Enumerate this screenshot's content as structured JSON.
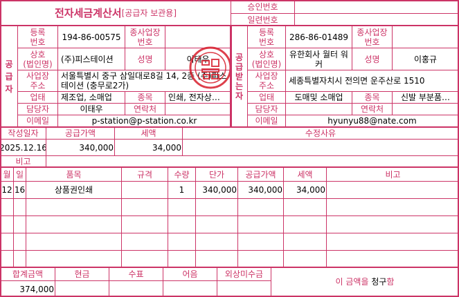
{
  "header": {
    "title": "전자세금계산서",
    "subtitle": "[공급자 보관용]",
    "approval_label": "승인번호",
    "approval_value": "",
    "serial_label": "일련번호",
    "serial_value": ""
  },
  "supplier": {
    "section_label": [
      "공",
      "급",
      "자"
    ],
    "reg_no_label": "등록\n번호",
    "reg_no": "194-86-00575",
    "sub_biz_label": "종사업장\n번호",
    "sub_biz": "",
    "company_label": "상호\n(법인명)",
    "company": "(주)피스테이션",
    "name_label": "성명",
    "name": "이태우",
    "address_label": "사업장\n주소",
    "address": "서울특별시 중구 삼일대로8길 14, 2층 (주)피스테이션 (충무로2가)",
    "biz_type_label": "업태",
    "biz_type": "제조업, 소매업",
    "item_label": "종목",
    "item": "인쇄, 전자상…",
    "manager_label": "담당자",
    "manager": "이태우",
    "contact_label": "연락처",
    "contact": "",
    "email_label": "이메일",
    "email": "p-station@p-station.co.kr",
    "stamp_color": "#d81e2c"
  },
  "buyer": {
    "section_label": [
      "공",
      "급",
      "받",
      "는",
      "자"
    ],
    "reg_no_label": "등록\n번호",
    "reg_no": "286-86-01489",
    "sub_biz_label": "종사업장\n번호",
    "sub_biz": "",
    "company_label": "상호\n(법인명)",
    "company": "유한회사 월터 워커",
    "name_label": "성명",
    "name": "이홍규",
    "address_label": "사업장\n주소",
    "address": "세종특별자치시 전의면 운주산로 1510",
    "biz_type_label": "업태",
    "biz_type": "도매및 소매업",
    "item_label": "종목",
    "item": "신발 부분품…",
    "manager_label": "담당자",
    "manager": "",
    "contact_label": "연락처",
    "contact": "",
    "email_label": "이메일",
    "email": "hyunyu88@nate.com"
  },
  "summary": {
    "date_label": "작성일자",
    "date": "2025.12.16",
    "supply_label": "공급가액",
    "supply": "340,000",
    "tax_label": "세액",
    "tax": "34,000",
    "reason_label": "수정사유",
    "reason": "",
    "note_label": "비고",
    "note": ""
  },
  "items": {
    "headers": [
      "월",
      "일",
      "품목",
      "규격",
      "수량",
      "단가",
      "공급가액",
      "세액",
      "비고"
    ],
    "rows": [
      [
        "12",
        "16",
        "상품권인쇄",
        "",
        "1",
        "340,000",
        "340,000",
        "34,000",
        ""
      ],
      [
        "",
        "",
        "",
        "",
        "",
        "",
        "",
        "",
        ""
      ],
      [
        "",
        "",
        "",
        "",
        "",
        "",
        "",
        "",
        ""
      ],
      [
        "",
        "",
        "",
        "",
        "",
        "",
        "",
        "",
        ""
      ],
      [
        "",
        "",
        "",
        "",
        "",
        "",
        "",
        "",
        ""
      ]
    ]
  },
  "footer": {
    "headers": [
      "합계금액",
      "현금",
      "수표",
      "어음",
      "외상미수금"
    ],
    "values": [
      "374,000",
      "",
      "",
      "",
      ""
    ],
    "claim_prefix": "이 금액을 ",
    "claim_mode": "청구",
    "claim_suffix": "함"
  },
  "colors": {
    "accent": "#cc3366"
  }
}
